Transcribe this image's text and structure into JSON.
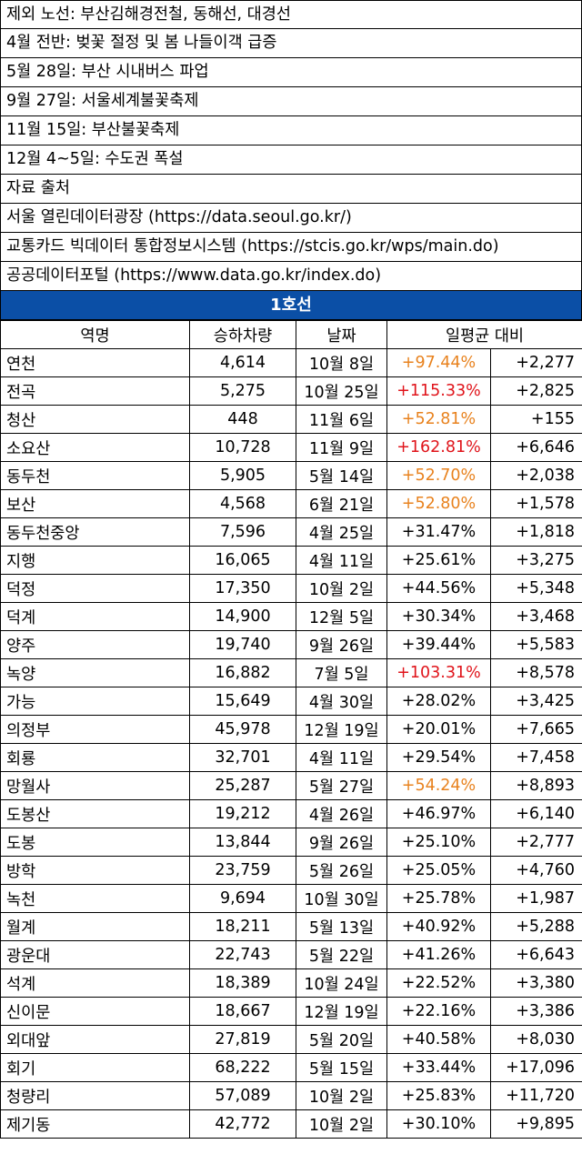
{
  "notes": [
    "제외 노선: 부산김해경전철, 동해선, 대경선",
    "4월 전반: 벚꽃 절정 및 봄 나들이객 급증",
    "5월 28일: 부산 시내버스 파업",
    "9월 27일: 서울세계불꽃축제",
    "11월 15일: 부산불꽃축제",
    "12월 4~5일: 수도권 폭설",
    "자료 출처",
    "서울 열린데이터광장 (https://data.seoul.go.kr/)",
    "교통카드 빅데이터 통합정보시스템 (https://stcis.go.kr/wps/main.do)",
    "공공데이터포털 (https://www.data.go.kr/index.do)"
  ],
  "line_title": "1호선",
  "columns": [
    "역명",
    "승하차량",
    "날짜",
    "일평균 대비"
  ],
  "colors": {
    "header_bg": "#0b4fa6",
    "orange": "#e8821e",
    "red": "#e0141b"
  },
  "rows": [
    {
      "station": "연천",
      "count": "4,614",
      "date": "10월 8일",
      "pct": "+97.44%",
      "diff": "+2,277",
      "tone": "orange"
    },
    {
      "station": "전곡",
      "count": "5,275",
      "date": "10월 25일",
      "pct": "+115.33%",
      "diff": "+2,825",
      "tone": "red"
    },
    {
      "station": "청산",
      "count": "448",
      "date": "11월 6일",
      "pct": "+52.81%",
      "diff": "+155",
      "tone": "orange"
    },
    {
      "station": "소요산",
      "count": "10,728",
      "date": "11월 9일",
      "pct": "+162.81%",
      "diff": "+6,646",
      "tone": "red"
    },
    {
      "station": "동두천",
      "count": "5,905",
      "date": "5월 14일",
      "pct": "+52.70%",
      "diff": "+2,038",
      "tone": "orange"
    },
    {
      "station": "보산",
      "count": "4,568",
      "date": "6월 21일",
      "pct": "+52.80%",
      "diff": "+1,578",
      "tone": "orange"
    },
    {
      "station": "동두천중앙",
      "count": "7,596",
      "date": "4월 25일",
      "pct": "+31.47%",
      "diff": "+1,818",
      "tone": "normal"
    },
    {
      "station": "지행",
      "count": "16,065",
      "date": "4월 11일",
      "pct": "+25.61%",
      "diff": "+3,275",
      "tone": "normal"
    },
    {
      "station": "덕정",
      "count": "17,350",
      "date": "10월 2일",
      "pct": "+44.56%",
      "diff": "+5,348",
      "tone": "normal"
    },
    {
      "station": "덕계",
      "count": "14,900",
      "date": "12월 5일",
      "pct": "+30.34%",
      "diff": "+3,468",
      "tone": "normal"
    },
    {
      "station": "양주",
      "count": "19,740",
      "date": "9월 26일",
      "pct": "+39.44%",
      "diff": "+5,583",
      "tone": "normal"
    },
    {
      "station": "녹양",
      "count": "16,882",
      "date": "7월 5일",
      "pct": "+103.31%",
      "diff": "+8,578",
      "tone": "red"
    },
    {
      "station": "가능",
      "count": "15,649",
      "date": "4월 30일",
      "pct": "+28.02%",
      "diff": "+3,425",
      "tone": "normal"
    },
    {
      "station": "의정부",
      "count": "45,978",
      "date": "12월 19일",
      "pct": "+20.01%",
      "diff": "+7,665",
      "tone": "normal"
    },
    {
      "station": "회룡",
      "count": "32,701",
      "date": "4월 11일",
      "pct": "+29.54%",
      "diff": "+7,458",
      "tone": "normal"
    },
    {
      "station": "망월사",
      "count": "25,287",
      "date": "5월 27일",
      "pct": "+54.24%",
      "diff": "+8,893",
      "tone": "orange"
    },
    {
      "station": "도봉산",
      "count": "19,212",
      "date": "4월 26일",
      "pct": "+46.97%",
      "diff": "+6,140",
      "tone": "normal"
    },
    {
      "station": "도봉",
      "count": "13,844",
      "date": "9월 26일",
      "pct": "+25.10%",
      "diff": "+2,777",
      "tone": "normal"
    },
    {
      "station": "방학",
      "count": "23,759",
      "date": "5월 26일",
      "pct": "+25.05%",
      "diff": "+4,760",
      "tone": "normal"
    },
    {
      "station": "녹천",
      "count": "9,694",
      "date": "10월 30일",
      "pct": "+25.78%",
      "diff": "+1,987",
      "tone": "normal"
    },
    {
      "station": "월계",
      "count": "18,211",
      "date": "5월 13일",
      "pct": "+40.92%",
      "diff": "+5,288",
      "tone": "normal"
    },
    {
      "station": "광운대",
      "count": "22,743",
      "date": "5월 22일",
      "pct": "+41.26%",
      "diff": "+6,643",
      "tone": "normal"
    },
    {
      "station": "석계",
      "count": "18,389",
      "date": "10월 24일",
      "pct": "+22.52%",
      "diff": "+3,380",
      "tone": "normal"
    },
    {
      "station": "신이문",
      "count": "18,667",
      "date": "12월 19일",
      "pct": "+22.16%",
      "diff": "+3,386",
      "tone": "normal"
    },
    {
      "station": "외대앞",
      "count": "27,819",
      "date": "5월 20일",
      "pct": "+40.58%",
      "diff": "+8,030",
      "tone": "normal"
    },
    {
      "station": "회기",
      "count": "68,222",
      "date": "5월 15일",
      "pct": "+33.44%",
      "diff": "+17,096",
      "tone": "normal"
    },
    {
      "station": "청량리",
      "count": "57,089",
      "date": "10월 2일",
      "pct": "+25.83%",
      "diff": "+11,720",
      "tone": "normal"
    },
    {
      "station": "제기동",
      "count": "42,772",
      "date": "10월 2일",
      "pct": "+30.10%",
      "diff": "+9,895",
      "tone": "normal"
    }
  ]
}
